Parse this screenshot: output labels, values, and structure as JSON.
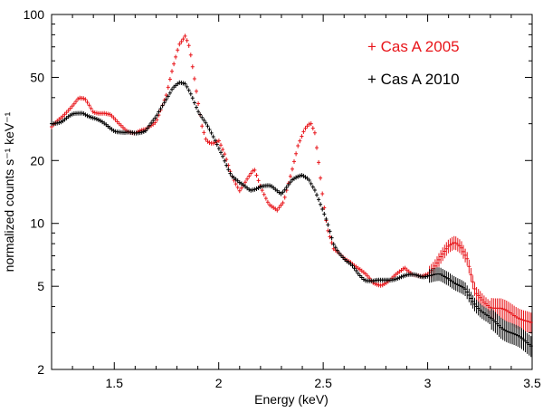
{
  "chart_data": {
    "type": "scatter",
    "title": "",
    "xlabel": "Energy (keV)",
    "ylabel": "normalized counts s⁻¹ keV⁻¹",
    "xlim": [
      1.2,
      3.5
    ],
    "ylim": [
      2,
      100
    ],
    "yscale": "log",
    "x_ticks": [
      {
        "value": 1.5,
        "label": "1.5"
      },
      {
        "value": 2,
        "label": "2"
      },
      {
        "value": 2.5,
        "label": "2.5"
      },
      {
        "value": 3,
        "label": "3"
      },
      {
        "value": 3.5,
        "label": "3.5"
      }
    ],
    "y_ticks": [
      {
        "value": 2,
        "label": "2"
      },
      {
        "value": 5,
        "label": "5"
      },
      {
        "value": 10,
        "label": "10"
      },
      {
        "value": 20,
        "label": "20"
      },
      {
        "value": 50,
        "label": "50"
      },
      {
        "value": 100,
        "label": "100"
      }
    ],
    "legend_position": "top-right",
    "series": [
      {
        "name": "Cas A 2005",
        "legend_label": "+ Cas A 2005",
        "color": "#e8161b",
        "marker": "cross",
        "x": [
          1.2,
          1.25,
          1.3,
          1.33,
          1.36,
          1.4,
          1.45,
          1.48,
          1.52,
          1.56,
          1.6,
          1.65,
          1.7,
          1.75,
          1.78,
          1.81,
          1.84,
          1.86,
          1.88,
          1.9,
          1.92,
          1.94,
          1.96,
          1.98,
          2.0,
          2.03,
          2.06,
          2.1,
          2.14,
          2.17,
          2.2,
          2.24,
          2.28,
          2.31,
          2.35,
          2.38,
          2.41,
          2.44,
          2.46,
          2.48,
          2.5,
          2.52,
          2.55,
          2.57,
          2.6,
          2.63,
          2.66,
          2.7,
          2.74,
          2.78,
          2.82,
          2.86,
          2.89,
          2.93,
          2.97,
          3.0,
          3.03,
          3.06,
          3.1,
          3.13,
          3.16,
          3.19,
          3.21,
          3.23,
          3.27,
          3.3,
          3.35,
          3.4,
          3.45,
          3.5
        ],
        "y": [
          29,
          32,
          37,
          40,
          39,
          34,
          34,
          33,
          30,
          28,
          27,
          28,
          31,
          41,
          55,
          72,
          80,
          70,
          52,
          38,
          29,
          25,
          24.5,
          24.5,
          25,
          21,
          17,
          14.5,
          16.5,
          18,
          15,
          12.5,
          11.5,
          12.5,
          18,
          24,
          28,
          30,
          27,
          19,
          13,
          9.5,
          7.5,
          7.2,
          6.8,
          6.6,
          6.2,
          5.7,
          5.2,
          5.1,
          5.3,
          5.8,
          6.2,
          5.7,
          5.5,
          5.7,
          6.2,
          6.9,
          7.7,
          8.1,
          7.8,
          6.8,
          5.5,
          4.6,
          4.2,
          4.0,
          3.9,
          3.7,
          3.5,
          3.3
        ]
      },
      {
        "name": "Cas A 2010",
        "legend_label": "+ Cas A 2010",
        "color": "#000000",
        "marker": "cross",
        "x": [
          1.2,
          1.25,
          1.3,
          1.35,
          1.4,
          1.45,
          1.5,
          1.55,
          1.6,
          1.65,
          1.7,
          1.74,
          1.78,
          1.81,
          1.84,
          1.87,
          1.9,
          1.94,
          1.98,
          2.02,
          2.06,
          2.1,
          2.15,
          2.2,
          2.25,
          2.3,
          2.35,
          2.4,
          2.43,
          2.46,
          2.49,
          2.52,
          2.55,
          2.58,
          2.61,
          2.64,
          2.67,
          2.7,
          2.74,
          2.78,
          2.82,
          2.86,
          2.9,
          2.94,
          2.98,
          3.02,
          3.06,
          3.1,
          3.14,
          3.18,
          3.22,
          3.26,
          3.3,
          3.35,
          3.4,
          3.45,
          3.5
        ],
        "y": [
          30,
          31,
          33,
          34,
          32,
          30,
          28,
          27,
          27,
          28,
          32,
          38,
          45,
          47,
          46,
          41,
          35,
          30,
          25,
          21,
          17,
          15.5,
          14.5,
          15,
          15,
          14,
          16,
          17,
          16.5,
          14.5,
          12,
          10,
          8,
          7.2,
          6.6,
          6.2,
          5.7,
          5.4,
          5.3,
          5.3,
          5.4,
          5.5,
          5.6,
          5.7,
          5.6,
          5.6,
          5.7,
          5.5,
          5.1,
          4.8,
          4.2,
          3.8,
          3.5,
          3.2,
          3.0,
          2.8,
          2.6
        ]
      }
    ]
  }
}
